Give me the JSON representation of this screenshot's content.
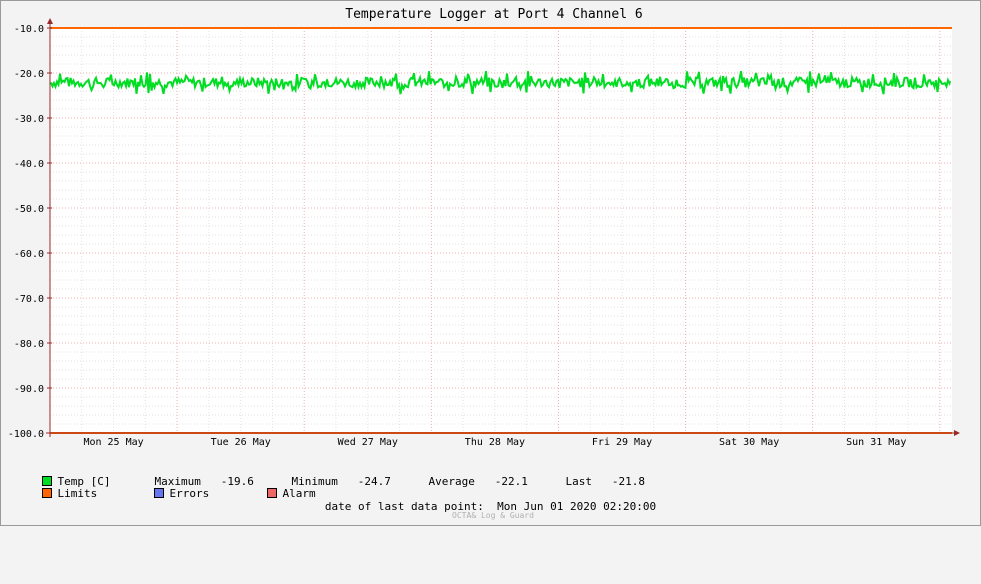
{
  "chart_data": {
    "type": "line",
    "title": "Temperature Logger at Port 4 Channel 6",
    "ylim": [
      -100.0,
      -10.0
    ],
    "y_ticks": [
      "-10.0",
      "-20.0",
      "-30.0",
      "-40.0",
      "-50.0",
      "-60.0",
      "-70.0",
      "-80.0",
      "-90.0",
      "-100.0"
    ],
    "y_tick_values": [
      -10,
      -20,
      -30,
      -40,
      -50,
      -60,
      -70,
      -80,
      -90,
      -100
    ],
    "x_labels": [
      "Mon 25 May",
      "Tue 26 May",
      "Wed 27 May",
      "Thu 28 May",
      "Fri 29 May",
      "Sat 30 May",
      "Sun 31 May"
    ],
    "x_range": [
      "2020-05-25 00:00",
      "2020-06-01 02:20"
    ],
    "grid": true,
    "series": [
      {
        "name": "Temp [C]",
        "color": "#00ff00",
        "min": -24.7,
        "max": -19.6,
        "average": -22.1,
        "last": -21.8
      },
      {
        "name": "Limits",
        "color": "#ff6600",
        "values": [
          -10.0,
          -100.0
        ]
      }
    ]
  },
  "legend": {
    "temp": {
      "label": "Temp [C]",
      "color": "#00dd22"
    },
    "stats": {
      "maximum_label": "Maximum",
      "maximum_value": "-19.6",
      "minimum_label": "Minimum",
      "minimum_value": "-24.7",
      "average_label": "Average",
      "average_value": "-22.1",
      "last_label": "Last",
      "last_value": "-21.8"
    },
    "limits": {
      "label": "Limits",
      "color": "#ff6600"
    },
    "errors": {
      "label": "Errors",
      "color": "#6677ee"
    },
    "alarm": {
      "label": "Alarm",
      "color": "#ee6666"
    }
  },
  "last_point": {
    "label": "date of last data point:",
    "value": "Mon Jun 01 2020 02:20:00"
  },
  "watermark": "OCTA& Log & Guard"
}
